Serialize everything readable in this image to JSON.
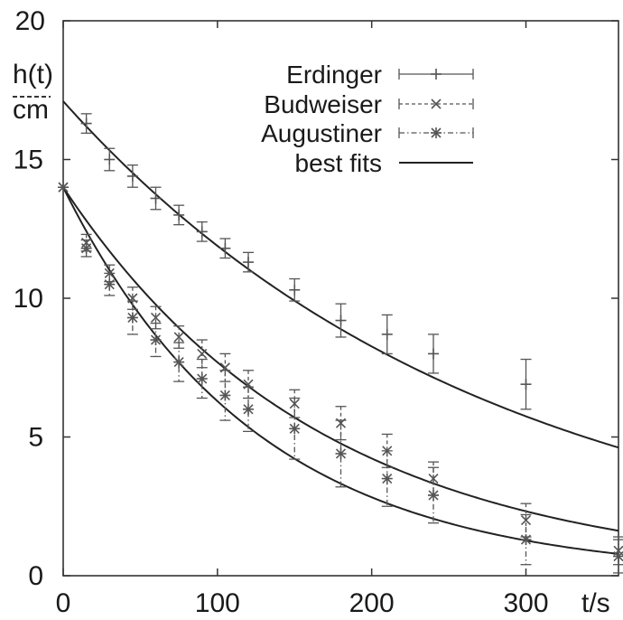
{
  "chart_data": {
    "type": "scatter",
    "xlabel": "t/s",
    "ylabel": {
      "numerator": "h(t)",
      "denominator": "cm"
    },
    "xlim": [
      0,
      360
    ],
    "ylim": [
      0,
      20
    ],
    "x_ticks": [
      0,
      100,
      200,
      300
    ],
    "y_ticks": [
      0,
      5,
      10,
      15,
      20
    ],
    "grid": false,
    "legend_position": "top-right",
    "series": [
      {
        "name": "Erdinger",
        "marker": "plus",
        "color": "#555555",
        "x": [
          15,
          30,
          45,
          60,
          75,
          90,
          105,
          120,
          150,
          180,
          210,
          240,
          300
        ],
        "y": [
          16.3,
          15.0,
          14.4,
          13.6,
          13.0,
          12.4,
          11.8,
          11.3,
          10.3,
          9.2,
          8.7,
          8.0,
          6.9
        ],
        "err": [
          0.35,
          0.4,
          0.4,
          0.4,
          0.35,
          0.35,
          0.35,
          0.35,
          0.4,
          0.6,
          0.7,
          0.7,
          0.9
        ]
      },
      {
        "name": "Budweiser",
        "marker": "cross",
        "color": "#555555",
        "x": [
          0,
          15,
          30,
          45,
          60,
          75,
          90,
          105,
          120,
          150,
          180,
          210,
          240,
          300,
          360
        ],
        "y": [
          14.0,
          12.0,
          10.9,
          10.0,
          9.3,
          8.6,
          8.0,
          7.5,
          6.9,
          6.2,
          5.5,
          4.5,
          3.5,
          2.0,
          0.9
        ],
        "err": [
          0.0,
          0.3,
          0.3,
          0.4,
          0.4,
          0.4,
          0.5,
          0.5,
          0.5,
          0.5,
          0.6,
          0.6,
          0.6,
          0.6,
          0.5
        ]
      },
      {
        "name": "Augustiner",
        "marker": "star",
        "color": "#555555",
        "x": [
          0,
          15,
          30,
          45,
          60,
          75,
          90,
          105,
          120,
          150,
          180,
          210,
          240,
          300,
          360
        ],
        "y": [
          14.0,
          11.8,
          10.5,
          9.3,
          8.5,
          7.7,
          7.1,
          6.5,
          6.0,
          5.3,
          4.4,
          3.5,
          2.9,
          1.3,
          0.7
        ],
        "err": [
          0.0,
          0.3,
          0.4,
          0.6,
          0.6,
          0.7,
          0.7,
          0.9,
          0.8,
          1.1,
          1.2,
          1.0,
          1.0,
          0.9,
          0.6
        ]
      },
      {
        "name": "best fits",
        "type": "line",
        "color": "#222222",
        "curves": [
          {
            "h0": 17.1,
            "tau": 275
          },
          {
            "h0": 14.0,
            "tau": 167
          },
          {
            "h0": 14.0,
            "tau": 125
          }
        ]
      }
    ]
  }
}
